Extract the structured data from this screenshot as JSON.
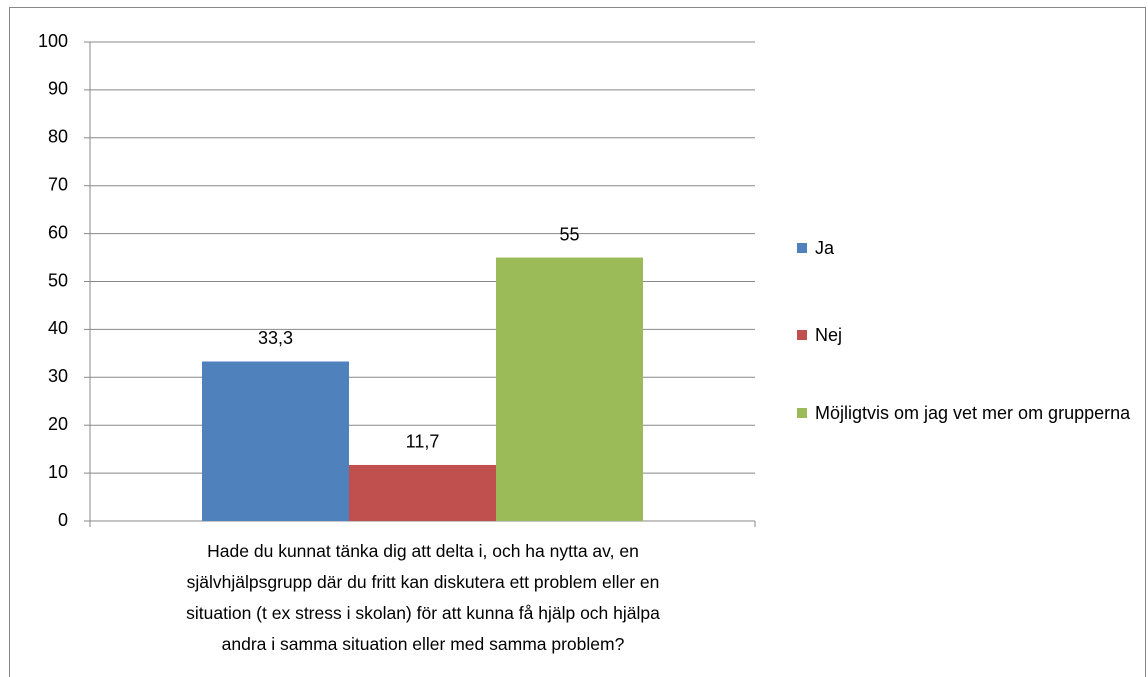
{
  "chart_data": {
    "type": "bar",
    "categories": [
      "Hade du kunnat tänka dig att delta i, och ha nytta av, en självhjälpsgrupp där du fritt kan diskutera ett problem eller en situation (t ex stress i skolan) för att kunna få hjälp och hjälpa andra i samma situation eller med samma problem?"
    ],
    "series": [
      {
        "name": "Ja",
        "color": "#4f81bd",
        "values": [
          33.3
        ],
        "value_labels": [
          "33,3"
        ]
      },
      {
        "name": "Nej",
        "color": "#c0504d",
        "values": [
          11.7
        ],
        "value_labels": [
          "11,7"
        ]
      },
      {
        "name": "Möjligtvis om jag vet mer om grupperna",
        "color": "#9bbb59",
        "values": [
          55
        ]
      }
    ],
    "ylim": [
      0,
      100
    ],
    "yticks": [
      0,
      10,
      20,
      30,
      40,
      50,
      60,
      70,
      80,
      90,
      100
    ],
    "grid": true,
    "legend": "right"
  }
}
